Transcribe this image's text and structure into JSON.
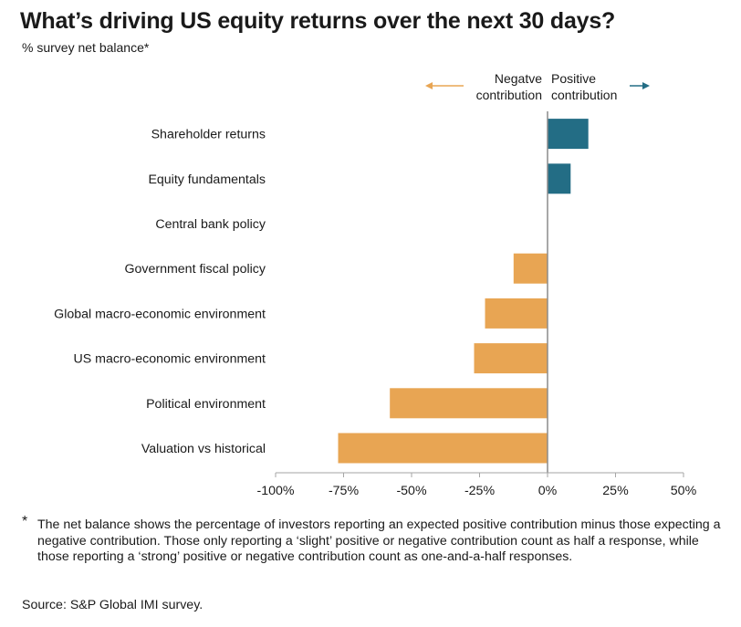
{
  "title": "What’s driving US equity returns over the next 30 days?",
  "subtitle": "% survey net balance*",
  "legend": {
    "negative_line1": "Negatve",
    "negative_line2": "contribution",
    "positive_line1": "Positive",
    "positive_line2": "contribution"
  },
  "colors": {
    "negative": "#E8A553",
    "positive": "#236D85",
    "axis": "#a6a6a6",
    "zero_line": "#8c8c8c"
  },
  "chart_data": {
    "type": "bar",
    "orientation": "horizontal",
    "title": "What’s driving US equity returns over the next 30 days?",
    "ylabel": "",
    "xlabel": "% survey net balance*",
    "xlim": [
      -100,
      50
    ],
    "xticks": [
      -100,
      -75,
      -50,
      -25,
      0,
      25,
      50
    ],
    "xtick_labels": [
      "-100%",
      "-75%",
      "-50%",
      "-25%",
      "0%",
      "25%",
      "50%"
    ],
    "categories": [
      "Shareholder returns",
      "Equity fundamentals",
      "Central bank policy",
      "Government fiscal policy",
      "Global macro-economic environment",
      "US macro-economic environment",
      "Political environment",
      "Valuation vs historical"
    ],
    "values": [
      15,
      8.5,
      0,
      -12.5,
      -23,
      -27,
      -58,
      -77
    ]
  },
  "footnote": {
    "marker": "*",
    "text": "The net balance shows the percentage of investors reporting an expected positive contribution minus those expecting a negative contribution. Those only reporting a ‘slight’ positive or negative contribution count as half a response, while those reporting a ‘strong’ positive or negative contribution count as one-and-a-half responses."
  },
  "source": "Source: S&P Global IMI survey."
}
